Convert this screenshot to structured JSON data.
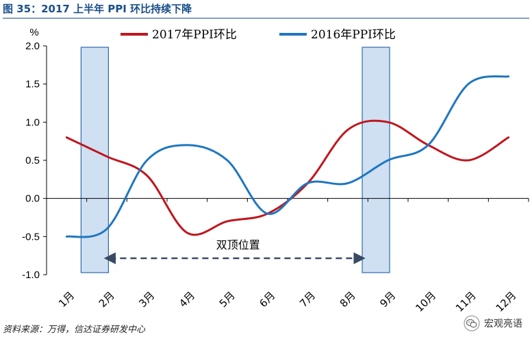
{
  "figure_title": "图 35：2017 上半年 PPI 环比持续下降",
  "source_note": "资料来源：万得，信达证券研发中心",
  "watermark_text": "宏观亮语",
  "watermark_icon": "wechat-icon",
  "colors": {
    "series_2017": "#c0161e",
    "series_2016": "#1f77c0",
    "band_fill": "#cfe0f3",
    "band_stroke": "#2e6aa6",
    "arrow": "#3a4a63",
    "title": "#1a4f8a"
  },
  "chart_data": {
    "type": "line",
    "unit_label": "%",
    "categories": [
      "1月",
      "2月",
      "3月",
      "4月",
      "5月",
      "6月",
      "7月",
      "8月",
      "9月",
      "10月",
      "11月",
      "12月"
    ],
    "y_ticks": [
      "2.0",
      "1.5",
      "1.0",
      "0.5",
      "0.0",
      "-0.5",
      "-1.0"
    ],
    "ylim": [
      -1.0,
      2.0
    ],
    "series": [
      {
        "name": "2017年PPI环比",
        "values": [
          0.8,
          0.55,
          0.3,
          -0.45,
          -0.3,
          -0.2,
          0.2,
          0.9,
          1.0,
          0.7,
          0.5,
          0.8
        ]
      },
      {
        "name": "2016年PPI环比",
        "values": [
          -0.5,
          -0.4,
          0.5,
          0.7,
          0.5,
          -0.2,
          0.2,
          0.2,
          0.5,
          0.7,
          1.5,
          1.6
        ]
      }
    ],
    "highlight_bands": [
      {
        "category": "2月"
      },
      {
        "category": "9月"
      }
    ],
    "annotation": {
      "text": "双顶位置",
      "from": "2月",
      "to": "9月"
    },
    "legend_position": "top"
  }
}
